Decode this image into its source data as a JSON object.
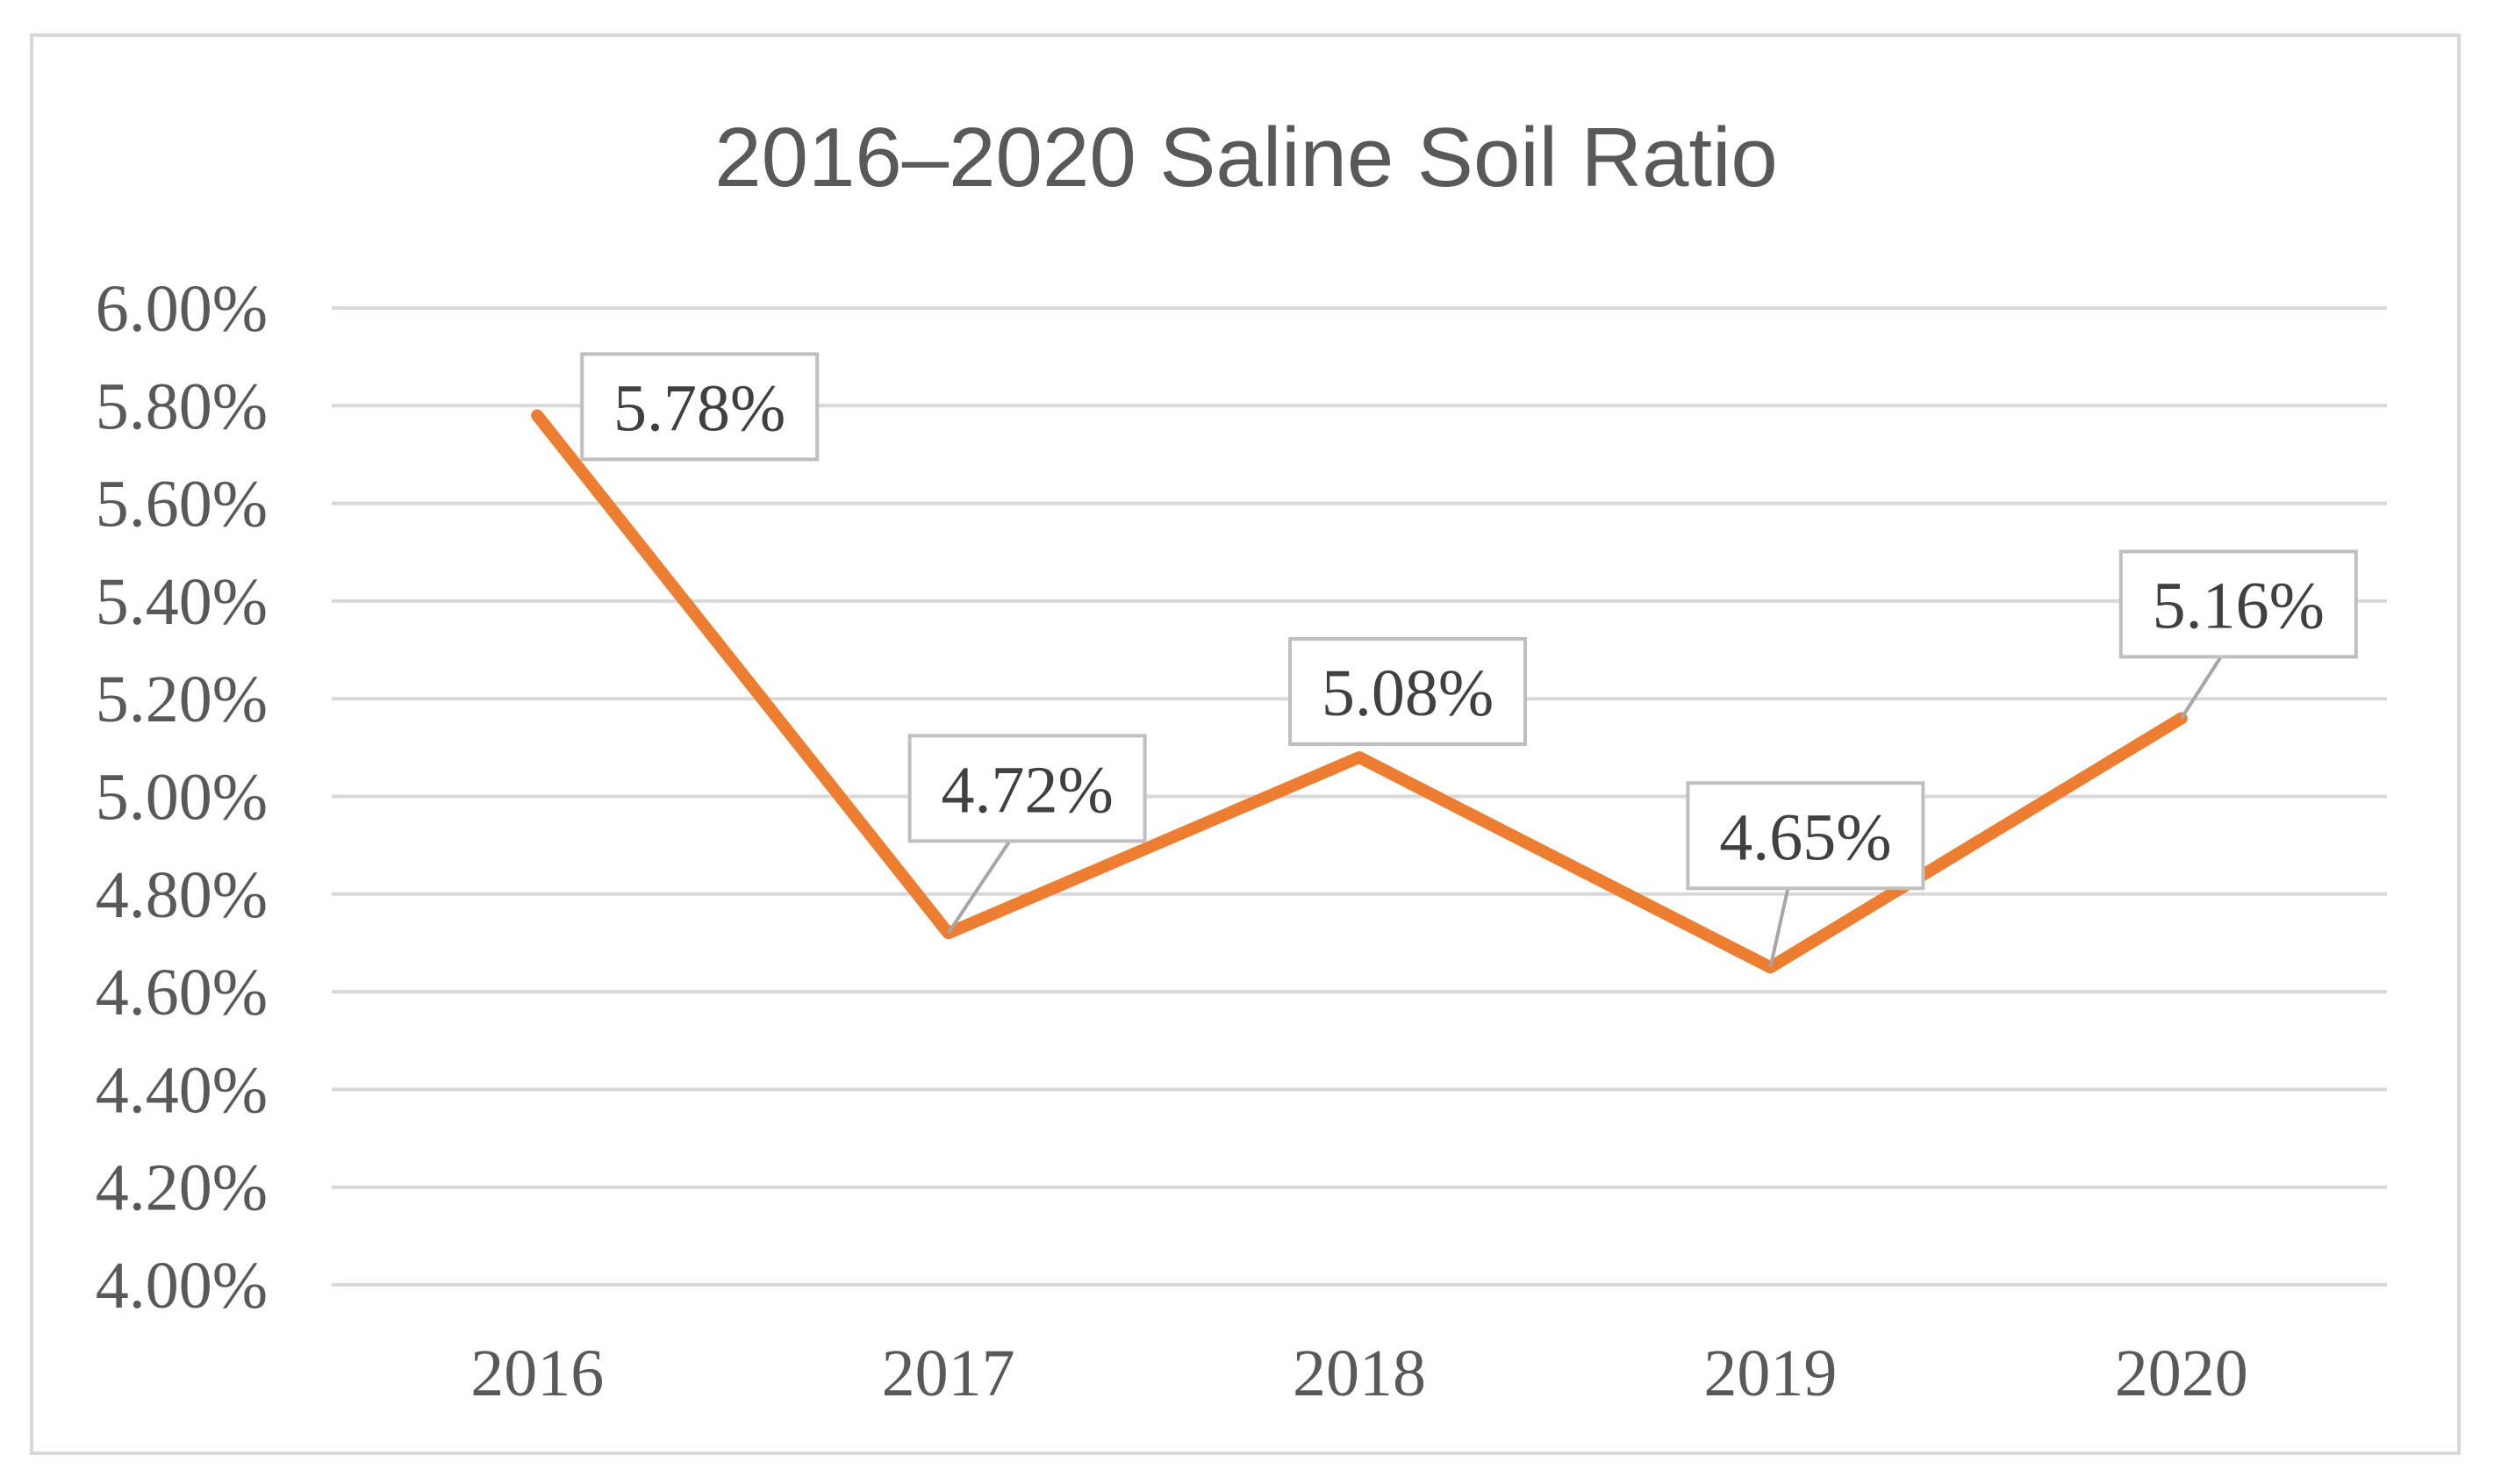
{
  "chart_data": {
    "type": "line",
    "title": "2016–2020 Saline Soil Ratio",
    "xlabel": "",
    "ylabel": "",
    "categories": [
      "2016",
      "2017",
      "2018",
      "2019",
      "2020"
    ],
    "series": [
      {
        "values": [
          5.78,
          4.72,
          5.08,
          4.65,
          5.16
        ],
        "labels": [
          "5.78%",
          "4.72%",
          "5.08%",
          "4.65%",
          "5.16%"
        ],
        "color": "#ed7d31"
      }
    ],
    "ylim": [
      4.0,
      6.0
    ],
    "yticks": [
      4.0,
      4.2,
      4.4,
      4.6,
      4.8,
      5.0,
      5.2,
      5.4,
      5.6,
      5.8,
      6.0
    ],
    "ytick_labels": [
      "4.00%",
      "4.20%",
      "4.40%",
      "4.60%",
      "4.80%",
      "5.00%",
      "5.20%",
      "5.40%",
      "5.60%",
      "5.80%",
      "6.00%"
    ],
    "grid": true,
    "legend": "none"
  }
}
